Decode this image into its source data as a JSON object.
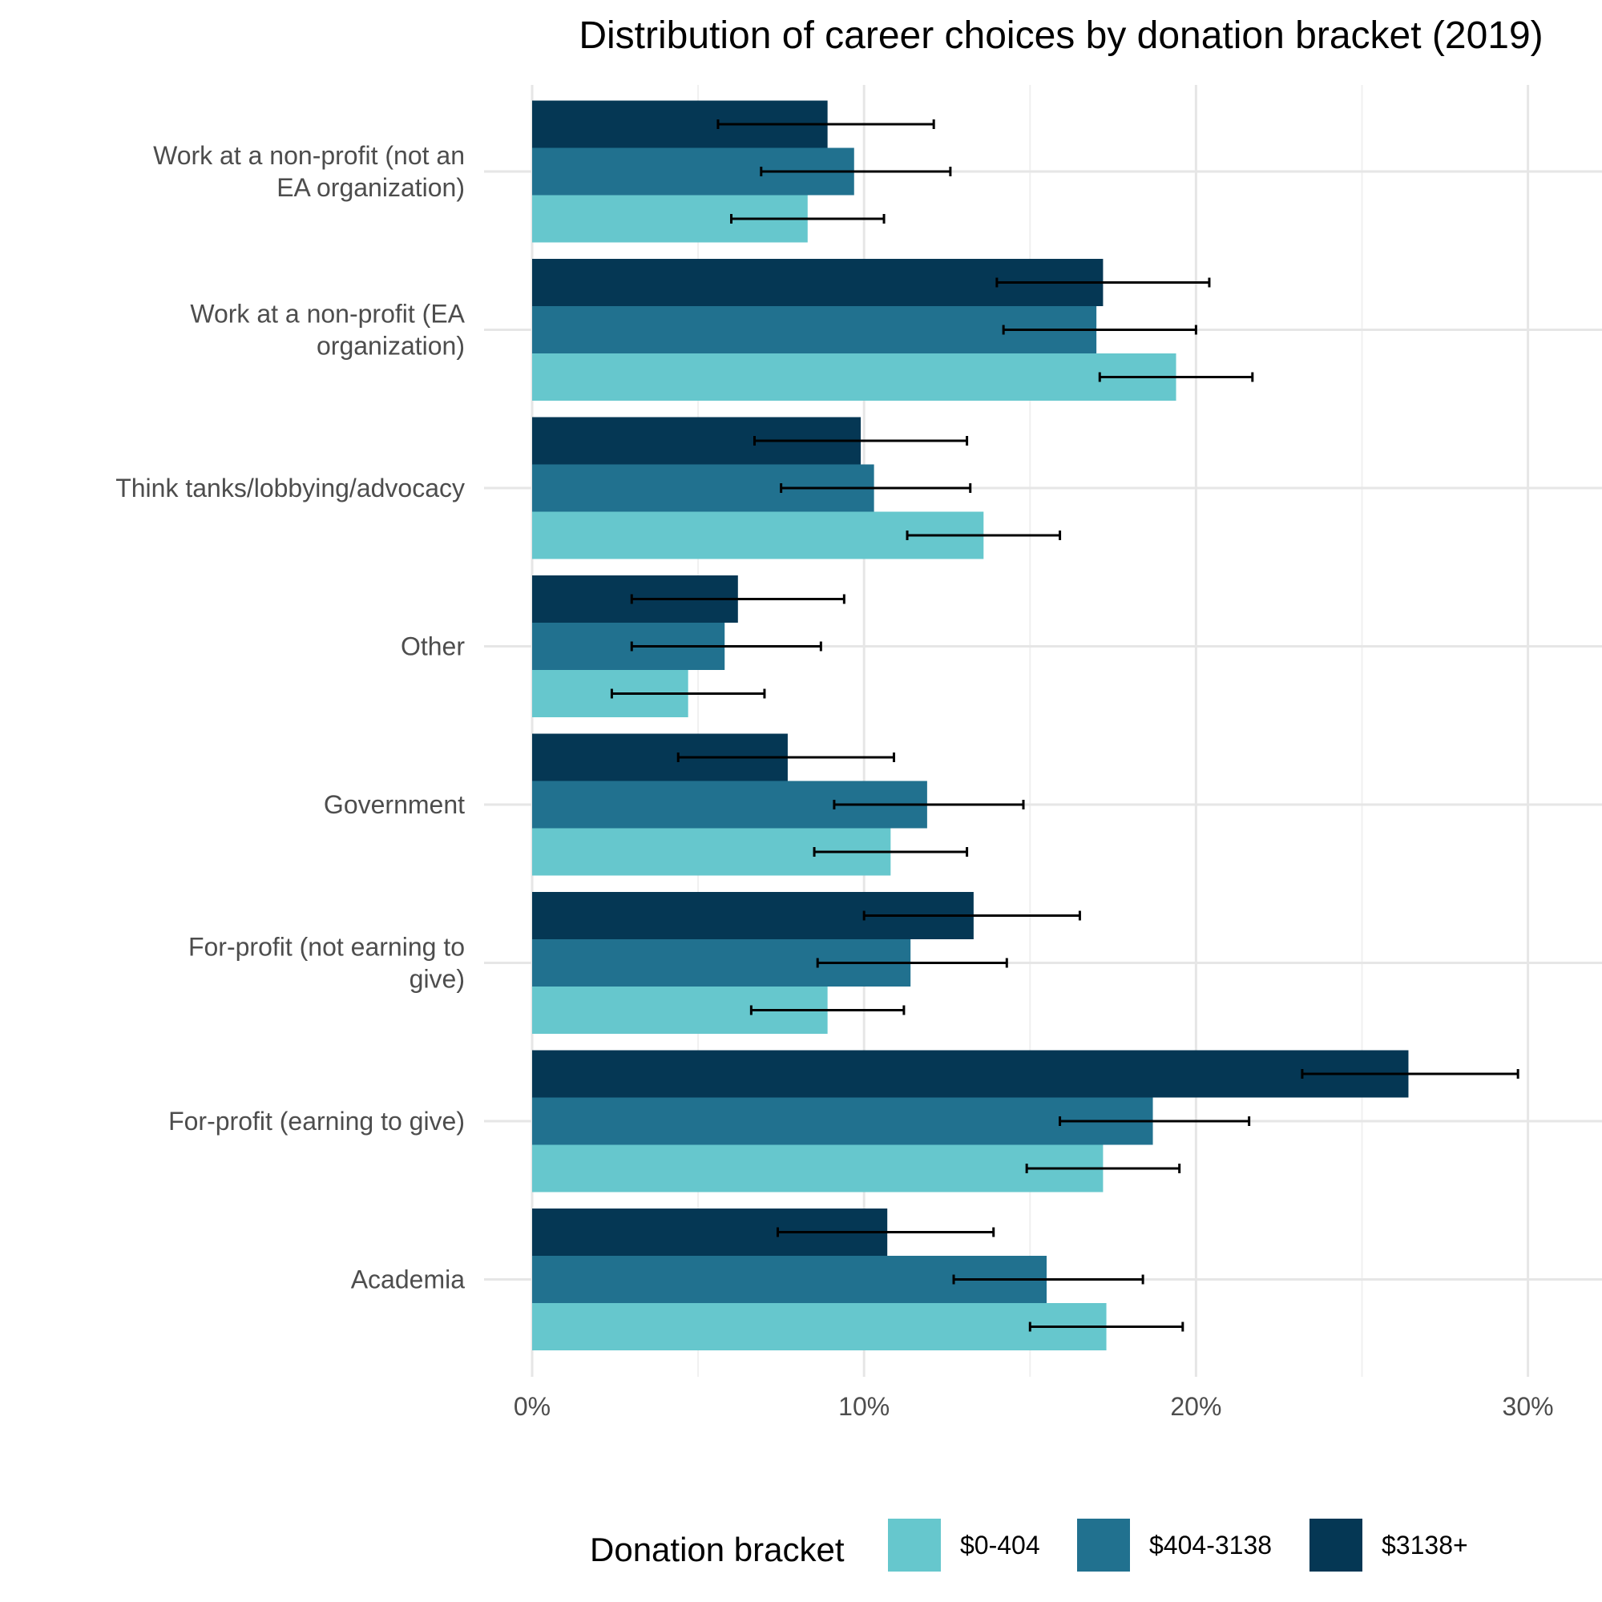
{
  "chart_data": {
    "type": "bar",
    "orientation": "horizontal",
    "title": "Distribution of career choices by donation bracket (2019)",
    "xlabel": "",
    "ylabel": "",
    "xlim": [
      0,
      0.31
    ],
    "x_ticks": [
      0,
      0.1,
      0.2,
      0.3
    ],
    "x_tick_labels": [
      "0%",
      "10%",
      "20%",
      "30%"
    ],
    "grid": true,
    "legend_position": "bottom",
    "legend_title": "Donation bracket",
    "categories": [
      "Work at a non-profit (not an EA organization)",
      "Work at a non-profit (EA organization)",
      "Think tanks/lobbying/advocacy",
      "Other",
      "Government",
      "For-profit (not earning to give)",
      "For-profit (earning to give)",
      "Academia"
    ],
    "category_label_lines": [
      [
        "Work at a non-profit (not an",
        "EA organization)"
      ],
      [
        "Work at a non-profit (EA",
        "organization)"
      ],
      [
        "Think tanks/lobbying/advocacy"
      ],
      [
        "Other"
      ],
      [
        "Government"
      ],
      [
        "For-profit (not earning to",
        "give)"
      ],
      [
        "For-profit (earning to give)"
      ],
      [
        "Academia"
      ]
    ],
    "series": [
      {
        "name": "$0-404",
        "color": "#66c7cd",
        "values": [
          0.083,
          0.194,
          0.136,
          0.047,
          0.108,
          0.089,
          0.172,
          0.173
        ],
        "err_low": [
          0.06,
          0.171,
          0.113,
          0.024,
          0.085,
          0.066,
          0.149,
          0.15
        ],
        "err_high": [
          0.106,
          0.217,
          0.159,
          0.07,
          0.131,
          0.112,
          0.195,
          0.196
        ]
      },
      {
        "name": "$404-3138",
        "color": "#21718f",
        "values": [
          0.097,
          0.17,
          0.103,
          0.058,
          0.119,
          0.114,
          0.187,
          0.155
        ],
        "err_low": [
          0.069,
          0.142,
          0.075,
          0.03,
          0.091,
          0.086,
          0.159,
          0.127
        ],
        "err_high": [
          0.126,
          0.2,
          0.132,
          0.087,
          0.148,
          0.143,
          0.216,
          0.184
        ]
      },
      {
        "name": "$3138+",
        "color": "#053754",
        "values": [
          0.089,
          0.172,
          0.099,
          0.062,
          0.077,
          0.133,
          0.264,
          0.107
        ],
        "err_low": [
          0.056,
          0.14,
          0.067,
          0.03,
          0.044,
          0.1,
          0.232,
          0.074
        ],
        "err_high": [
          0.121,
          0.204,
          0.131,
          0.094,
          0.109,
          0.165,
          0.297,
          0.139
        ]
      }
    ]
  }
}
